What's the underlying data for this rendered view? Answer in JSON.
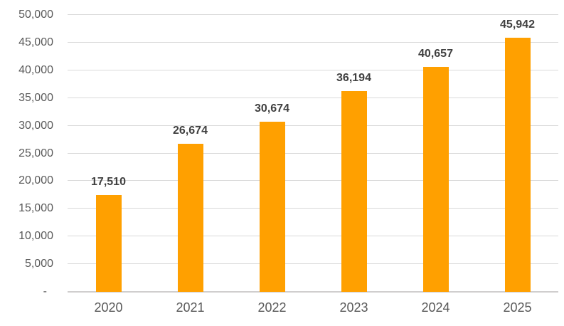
{
  "chart_data": {
    "type": "bar",
    "title": "",
    "xlabel": "",
    "ylabel": "",
    "categories": [
      "2020",
      "2021",
      "2022",
      "2023",
      "2024",
      "2025"
    ],
    "values": [
      17510,
      26674,
      30674,
      36194,
      40657,
      45942
    ],
    "data_labels": [
      "17,510",
      "26,674",
      "30,674",
      "36,194",
      "40,657",
      "45,942"
    ],
    "ylim": [
      0,
      50000
    ],
    "y_tick_step": 5000,
    "y_tick_labels": [
      "-",
      "5,000",
      "10,000",
      "15,000",
      "20,000",
      "25,000",
      "30,000",
      "35,000",
      "40,000",
      "45,000",
      "50,000"
    ],
    "grid": true,
    "legend": false,
    "colors": {
      "bar": "#FFA000",
      "data_label": "#404040",
      "tick_label": "#595959",
      "gridline": "#D9D9D9",
      "axis_line": "#D0CECE",
      "background": "#FFFFFF"
    }
  }
}
